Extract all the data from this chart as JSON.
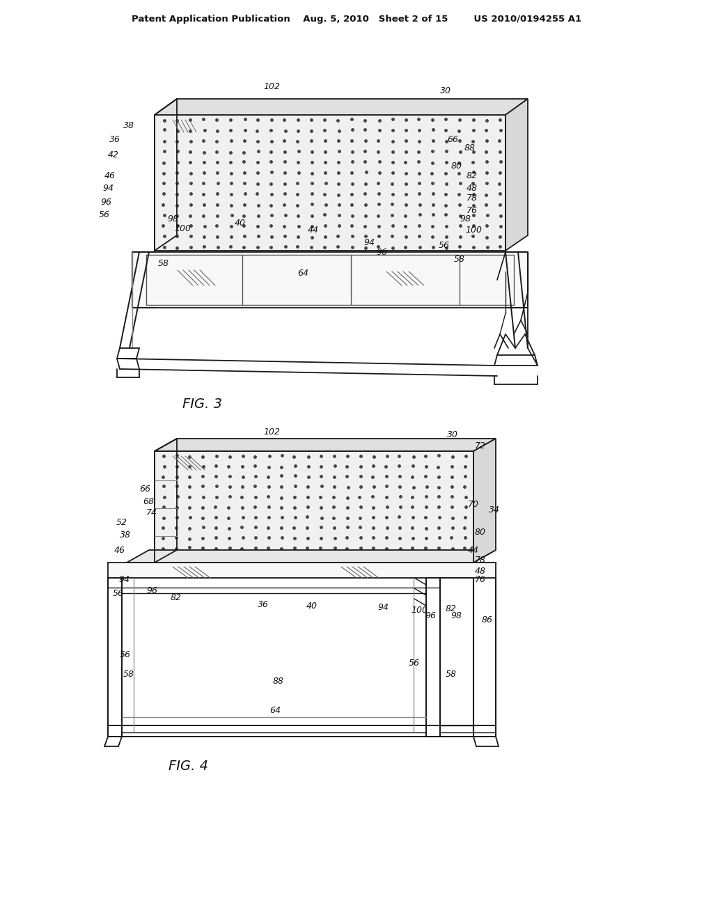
{
  "bg_color": "#ffffff",
  "line_color": "#1a1a1a",
  "dot_color": "#444444",
  "header": "Patent Application Publication    Aug. 5, 2010   Sheet 2 of 15        US 2010/0194255 A1",
  "fig3_label": "FIG. 3",
  "fig4_label": "FIG. 4",
  "fig3_labels": [
    [
      "102",
      390,
      1195
    ],
    [
      "30",
      640,
      1190
    ],
    [
      "38",
      185,
      1140
    ],
    [
      "36",
      165,
      1120
    ],
    [
      "42",
      163,
      1098
    ],
    [
      "66",
      650,
      1120
    ],
    [
      "88",
      675,
      1108
    ],
    [
      "46",
      158,
      1068
    ],
    [
      "80",
      656,
      1082
    ],
    [
      "82",
      678,
      1068
    ],
    [
      "94",
      155,
      1050
    ],
    [
      "48",
      678,
      1050
    ],
    [
      "96",
      152,
      1030
    ],
    [
      "78",
      678,
      1035
    ],
    [
      "56",
      150,
      1012
    ],
    [
      "98",
      248,
      1005
    ],
    [
      "100",
      262,
      992
    ],
    [
      "40",
      345,
      1000
    ],
    [
      "44",
      450,
      990
    ],
    [
      "94",
      530,
      972
    ],
    [
      "96",
      548,
      958
    ],
    [
      "76",
      678,
      1018
    ],
    [
      "98",
      668,
      1005
    ],
    [
      "100",
      680,
      990
    ],
    [
      "56",
      638,
      968
    ],
    [
      "58",
      235,
      942
    ],
    [
      "64",
      435,
      928
    ],
    [
      "58",
      660,
      948
    ]
  ],
  "fig4_labels": [
    [
      "102",
      390,
      700
    ],
    [
      "30",
      650,
      695
    ],
    [
      "72",
      690,
      680
    ],
    [
      "66",
      208,
      618
    ],
    [
      "68",
      213,
      600
    ],
    [
      "70",
      680,
      595
    ],
    [
      "34",
      710,
      588
    ],
    [
      "74",
      218,
      583
    ],
    [
      "52",
      175,
      570
    ],
    [
      "38",
      180,
      552
    ],
    [
      "80",
      690,
      555
    ],
    [
      "46",
      172,
      530
    ],
    [
      "44",
      680,
      530
    ],
    [
      "78",
      690,
      515
    ],
    [
      "48",
      690,
      500
    ],
    [
      "76",
      690,
      488
    ],
    [
      "94",
      178,
      488
    ],
    [
      "96",
      218,
      472
    ],
    [
      "56",
      170,
      468
    ],
    [
      "82",
      253,
      462
    ],
    [
      "36",
      378,
      452
    ],
    [
      "40",
      448,
      450
    ],
    [
      "94",
      550,
      447
    ],
    [
      "100",
      602,
      443
    ],
    [
      "82",
      648,
      445
    ],
    [
      "96",
      618,
      435
    ],
    [
      "98",
      655,
      435
    ],
    [
      "86",
      700,
      430
    ],
    [
      "56",
      180,
      380
    ],
    [
      "58",
      185,
      352
    ],
    [
      "88",
      400,
      342
    ],
    [
      "56",
      595,
      368
    ],
    [
      "58",
      648,
      352
    ],
    [
      "64",
      395,
      300
    ]
  ]
}
